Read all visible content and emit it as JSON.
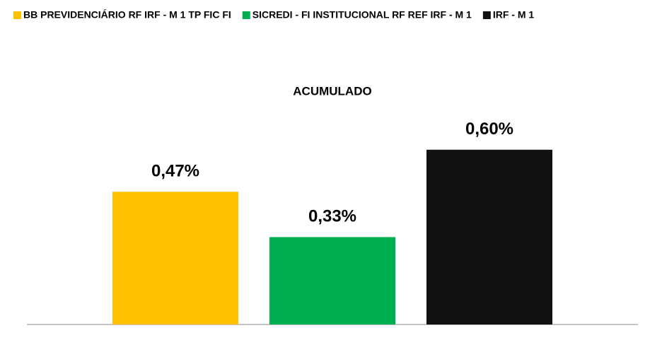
{
  "chart_data": {
    "type": "bar",
    "categories": [
      "ACUMULADO"
    ],
    "series": [
      {
        "name": "BB PREVIDENCIÁRIO RF IRF - M 1 TP FIC FI",
        "color": "#ffc000",
        "values": [
          0.47
        ],
        "value_labels": [
          "0,47%"
        ]
      },
      {
        "name": "SICREDI - FI INSTITUCIONAL RF REF IRF - M 1",
        "color": "#00b050",
        "values": [
          0.33
        ],
        "value_labels": [
          "0,33%"
        ]
      },
      {
        "name": "IRF - M 1",
        "color": "#111111",
        "values": [
          0.6
        ],
        "value_labels": [
          "0,60%"
        ]
      }
    ],
    "ylim": [
      0.06,
      0.7
    ],
    "legend": "top"
  }
}
